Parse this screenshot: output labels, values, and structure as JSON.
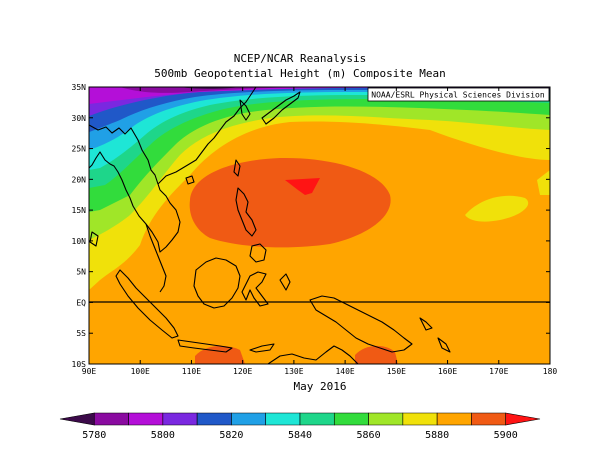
{
  "chart_data": {
    "type": "heatmap",
    "title": "NCEP/NCAR Reanalysis",
    "subtitle": "500mb Geopotential Height (m) Composite Mean",
    "xlabel": "May 2016",
    "credit": "NOAA/ESRL Physical Sciences Division",
    "x_ticks": [
      "90E",
      "100E",
      "110E",
      "120E",
      "130E",
      "140E",
      "150E",
      "160E",
      "170E",
      "180"
    ],
    "x_values": [
      90,
      100,
      110,
      120,
      130,
      140,
      150,
      160,
      170,
      180
    ],
    "y_ticks": [
      "10S",
      "5S",
      "EQ",
      "5N",
      "10N",
      "15N",
      "20N",
      "25N",
      "30N",
      "35N"
    ],
    "y_values": [
      -10,
      -5,
      0,
      5,
      10,
      15,
      20,
      25,
      30,
      35
    ],
    "xlim": [
      90,
      180
    ],
    "ylim": [
      -10,
      35
    ],
    "equator_line": true,
    "colorbar": {
      "labels": [
        "5780",
        "5800",
        "5820",
        "5840",
        "5860",
        "5880",
        "5900"
      ],
      "levels": [
        5780,
        5790,
        5800,
        5810,
        5820,
        5830,
        5840,
        5850,
        5860,
        5870,
        5880,
        5890,
        5900
      ],
      "colors": [
        "#3c0a4a",
        "#8a0aa0",
        "#b40fd8",
        "#7a28e0",
        "#2058c8",
        "#20a0e6",
        "#1ee6d6",
        "#1ed68a",
        "#32dc3c",
        "#a0e628",
        "#f0e10a",
        "#ffa500",
        "#f05a14",
        "#ff1414"
      ]
    },
    "height_field_bands": [
      {
        "min": 5780,
        "max": 5790
      },
      {
        "min": 5790,
        "max": 5800
      },
      {
        "min": 5800,
        "max": 5810
      },
      {
        "min": 5810,
        "max": 5820
      },
      {
        "min": 5820,
        "max": 5830
      },
      {
        "min": 5830,
        "max": 5840
      },
      {
        "min": 5840,
        "max": 5850
      },
      {
        "min": 5850,
        "max": 5860
      },
      {
        "min": 5860,
        "max": 5870
      },
      {
        "min": 5870,
        "max": 5880
      },
      {
        "min": 5880,
        "max": 5890
      },
      {
        "min": 5890,
        "max": 5900
      }
    ],
    "features": {
      "high_center": {
        "lon": 132,
        "lat": 19.5,
        "level": 5900
      },
      "high_ring_5890": {
        "lon": 132,
        "lat": 16.5,
        "lon_radius": 21,
        "lat_radius": 6
      }
    }
  }
}
